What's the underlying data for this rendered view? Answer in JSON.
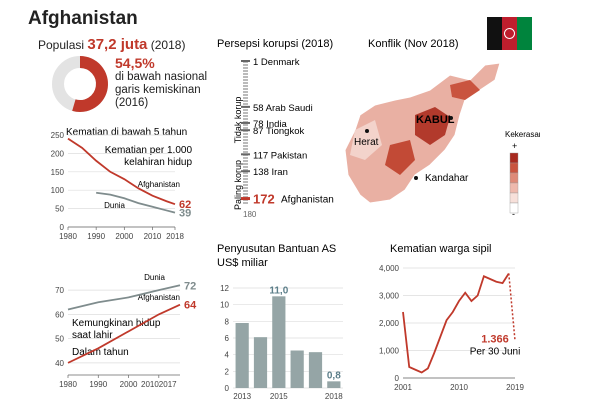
{
  "title": "Afghanistan",
  "population": {
    "label": "Populasi",
    "value": "37,2 juta",
    "year": "(2018)"
  },
  "poverty": {
    "percent": "54,5%",
    "text_line1": "di bawah nasional",
    "text_line2": "garis kemiskinan",
    "text_line3": "(2016)",
    "fraction": 0.545,
    "color": "#c0392b"
  },
  "chart_data": [
    {
      "type": "line",
      "title": "Kematian di bawah 5 tahun",
      "subtitle_line1": "Kematian per 1.000",
      "subtitle_line2": "kelahiran hidup",
      "x_ticks": [
        "1980",
        "1990",
        "2000",
        "2010",
        "2018"
      ],
      "y_ticks": [
        "0",
        "50",
        "100",
        "150",
        "200",
        "250"
      ],
      "ylim": [
        0,
        250
      ],
      "xlim": [
        1980,
        2018
      ],
      "series": [
        {
          "name": "Afghanistan",
          "color": "#c0392b",
          "end_label": "62",
          "x": [
            1980,
            1985,
            1990,
            1995,
            2000,
            2005,
            2010,
            2015,
            2018
          ],
          "values": [
            240,
            215,
            180,
            150,
            130,
            105,
            85,
            70,
            62
          ]
        },
        {
          "name": "Dunia",
          "color": "#7f8c8d",
          "end_label": "39",
          "x": [
            1990,
            1995,
            2000,
            2005,
            2010,
            2015,
            2018
          ],
          "values": [
            93,
            88,
            78,
            65,
            55,
            45,
            39
          ]
        }
      ]
    },
    {
      "type": "line",
      "title": "Kemungkinan hidup saat lahir",
      "subtitle": "Dalam tahun",
      "title_line1": "Kemungkinan hidup",
      "title_line2": "saat lahir",
      "x_ticks": [
        "1980",
        "1990",
        "2000",
        "20102017"
      ],
      "y_ticks": [
        "40",
        "50",
        "60",
        "70"
      ],
      "ylim": [
        35,
        75
      ],
      "xlim": [
        1980,
        2017
      ],
      "series": [
        {
          "name": "Dunia",
          "color": "#7f8c8d",
          "end_label": "72",
          "x": [
            1980,
            1990,
            2000,
            2010,
            2017
          ],
          "values": [
            62,
            65,
            67,
            70,
            72
          ]
        },
        {
          "name": "Afghanistan",
          "color": "#c0392b",
          "end_label": "64",
          "x": [
            1980,
            1990,
            2000,
            2010,
            2017
          ],
          "values": [
            40,
            46,
            53,
            60,
            64
          ]
        }
      ]
    },
    {
      "type": "table",
      "title": "Persepsi korupsi (2018)",
      "axis_top": "Tidak korup",
      "axis_bottom": "Paling korup",
      "scale_top": "1",
      "scale_bottom": "180",
      "entries": [
        {
          "rank": 1,
          "label": "1 Denmark"
        },
        {
          "rank": 58,
          "label": "58 Arab Saudi"
        },
        {
          "rank": 78,
          "label": "78 India"
        },
        {
          "rank": 87,
          "label": "87 Tiongkok"
        },
        {
          "rank": 117,
          "label": "117 Pakistan"
        },
        {
          "rank": 138,
          "label": "138 Iran"
        }
      ],
      "highlight": {
        "rank": "172",
        "label": "Afghanistan",
        "color": "#c0392b"
      }
    },
    {
      "type": "bar",
      "title_line1": "Penyusutan Bantuan AS",
      "title_line2": "US$ miliar",
      "categories": [
        "2013",
        "2014",
        "2015",
        "2016",
        "2017",
        "2018"
      ],
      "values": [
        7.8,
        6.1,
        11.0,
        4.5,
        4.3,
        0.8
      ],
      "x_ticks": [
        "2013",
        "2015",
        "2018"
      ],
      "y_ticks": [
        "0",
        "2",
        "4",
        "6",
        "8",
        "10",
        "12"
      ],
      "ylim": [
        0,
        12
      ],
      "labels": [
        "11,0",
        "0,8"
      ],
      "color": "#95a5a6"
    },
    {
      "type": "line",
      "title": "Kematian warga sipil",
      "x": [
        2001,
        2002,
        2003,
        2004,
        2005,
        2006,
        2007,
        2008,
        2009,
        2010,
        2011,
        2012,
        2013,
        2014,
        2015,
        2016,
        2017,
        2018,
        2019
      ],
      "values": [
        2400,
        400,
        300,
        200,
        350,
        900,
        1500,
        2100,
        2400,
        2800,
        3100,
        2800,
        3000,
        3700,
        3600,
        3500,
        3450,
        3800,
        1366
      ],
      "x_ticks": [
        "2001",
        "2010",
        "2019"
      ],
      "y_ticks": [
        "0",
        "1,000",
        "2,000",
        "3,000",
        "4,000"
      ],
      "ylim": [
        0,
        4000
      ],
      "annotation_value": "1.366",
      "annotation_text": "Per 30 Juni",
      "color": "#c0392b"
    }
  ],
  "map": {
    "title": "Konflik (Nov 2018)",
    "cities": [
      "KABUL",
      "Herat",
      "Kandahar"
    ],
    "legend_title": "Kekerasan",
    "legend_plus": "+",
    "legend_minus": "-",
    "legend_colors": [
      "#a82a1f",
      "#c9543f",
      "#de8a78",
      "#eeb9ad",
      "#f7e0da",
      "#ffffff"
    ]
  },
  "flag_colors": [
    "#111111",
    "#be1e2d",
    "#00843d"
  ]
}
